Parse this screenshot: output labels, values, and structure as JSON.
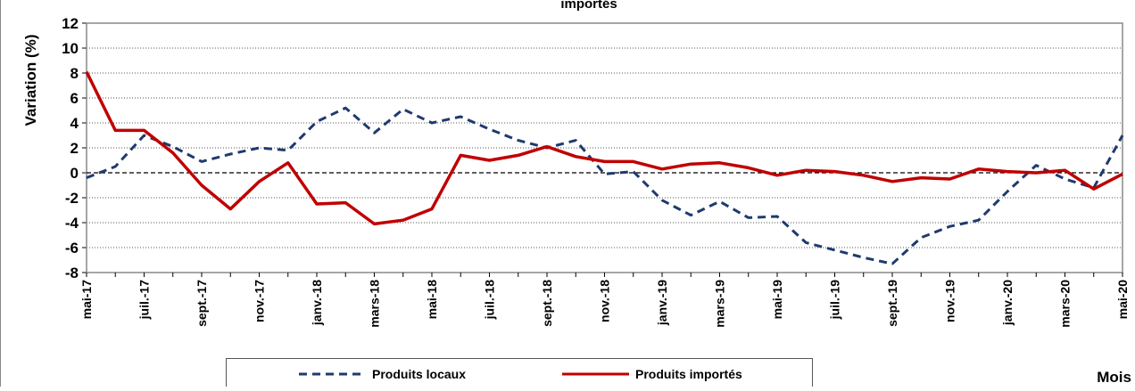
{
  "chart_data": {
    "type": "line",
    "title": "importés",
    "y_label": "Variation (%)",
    "x_label": "Mois",
    "categories": [
      "mai-17",
      null,
      "juil.-17",
      null,
      "sept.-17",
      null,
      "nov.-17",
      null,
      "janv.-18",
      null,
      "mars-18",
      null,
      "mai-18",
      null,
      "juil.-18",
      null,
      "sept.-18",
      null,
      "nov.-18",
      null,
      "janv.-19",
      null,
      "mars-19",
      null,
      "mai-19",
      null,
      "juil.-19",
      null,
      "sept.-19",
      null,
      "nov.-19",
      null,
      "janv.-20",
      null,
      "mars-20",
      null,
      "mai-20"
    ],
    "series": [
      {
        "name": "Produits locaux",
        "color": "#1f3a6e",
        "dashed": true,
        "values": [
          -0.4,
          0.5,
          3.0,
          2.1,
          0.9,
          1.5,
          2.0,
          1.8,
          4.1,
          5.2,
          3.2,
          5.1,
          4.0,
          4.5,
          3.5,
          2.6,
          2.0,
          2.6,
          -0.1,
          0.1,
          -2.2,
          -3.4,
          -2.3,
          -3.6,
          -3.5,
          -5.6,
          -6.2,
          -6.8,
          -7.3,
          -5.2,
          -4.3,
          -3.8,
          -1.5,
          0.6,
          -0.5,
          -1.2,
          3.0
        ]
      },
      {
        "name": "Produits importés",
        "color": "#c00000",
        "dashed": false,
        "values": [
          8.1,
          3.4,
          3.4,
          1.6,
          -1.0,
          -2.9,
          -0.7,
          0.8,
          -2.5,
          -2.4,
          -4.1,
          -3.8,
          -2.9,
          1.4,
          1.0,
          1.4,
          2.1,
          1.3,
          0.9,
          0.9,
          0.3,
          0.7,
          0.8,
          0.4,
          -0.2,
          0.2,
          0.1,
          -0.2,
          -0.7,
          -0.4,
          -0.5,
          0.3,
          0.1,
          0.0,
          0.2,
          -1.3,
          -0.1
        ]
      }
    ],
    "ylim": [
      -8,
      12
    ],
    "yticks": [
      -8,
      -6,
      -4,
      -2,
      0,
      2,
      4,
      6,
      8,
      10,
      12
    ],
    "grid": true,
    "legend": "bottom"
  }
}
